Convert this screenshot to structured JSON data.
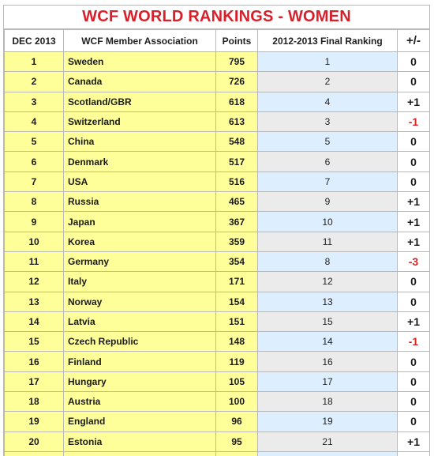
{
  "title": "WCF WORLD RANKINGS - WOMEN",
  "columns": [
    "DEC 2013",
    "WCF Member Association",
    "Points",
    "2012-2013 Final Ranking",
    "+/-"
  ],
  "rows": [
    {
      "rank": "1",
      "association": "Sweden",
      "points": "795",
      "final": "1",
      "change": "0"
    },
    {
      "rank": "2",
      "association": "Canada",
      "points": "726",
      "final": "2",
      "change": "0"
    },
    {
      "rank": "3",
      "association": "Scotland/GBR",
      "points": "618",
      "final": "4",
      "change": "+1"
    },
    {
      "rank": "4",
      "association": "Switzerland",
      "points": "613",
      "final": "3",
      "change": "-1"
    },
    {
      "rank": "5",
      "association": "China",
      "points": "548",
      "final": "5",
      "change": "0"
    },
    {
      "rank": "6",
      "association": "Denmark",
      "points": "517",
      "final": "6",
      "change": "0"
    },
    {
      "rank": "7",
      "association": "USA",
      "points": "516",
      "final": "7",
      "change": "0"
    },
    {
      "rank": "8",
      "association": "Russia",
      "points": "465",
      "final": "9",
      "change": "+1"
    },
    {
      "rank": "9",
      "association": "Japan",
      "points": "367",
      "final": "10",
      "change": "+1"
    },
    {
      "rank": "10",
      "association": "Korea",
      "points": "359",
      "final": "11",
      "change": "+1"
    },
    {
      "rank": "11",
      "association": "Germany",
      "points": "354",
      "final": "8",
      "change": "-3"
    },
    {
      "rank": "12",
      "association": "Italy",
      "points": "171",
      "final": "12",
      "change": "0"
    },
    {
      "rank": "13",
      "association": "Norway",
      "points": "154",
      "final": "13",
      "change": "0"
    },
    {
      "rank": "14",
      "association": "Latvia",
      "points": "151",
      "final": "15",
      "change": "+1"
    },
    {
      "rank": "15",
      "association": "Czech Republic",
      "points": "148",
      "final": "14",
      "change": "-1"
    },
    {
      "rank": "16",
      "association": "Finland",
      "points": "119",
      "final": "16",
      "change": "0"
    },
    {
      "rank": "17",
      "association": "Hungary",
      "points": "105",
      "final": "17",
      "change": "0"
    },
    {
      "rank": "18",
      "association": "Austria",
      "points": "100",
      "final": "18",
      "change": "0"
    },
    {
      "rank": "19",
      "association": "England",
      "points": "96",
      "final": "19",
      "change": "0"
    },
    {
      "rank": "20",
      "association": "Estonia",
      "points": "95",
      "final": "21",
      "change": "+1"
    }
  ],
  "colors": {
    "title": "#d8202a",
    "highlight": "#ffff99",
    "final_odd": "#ddeeff",
    "final_even": "#ebebeb",
    "negative": "#dd2222"
  }
}
